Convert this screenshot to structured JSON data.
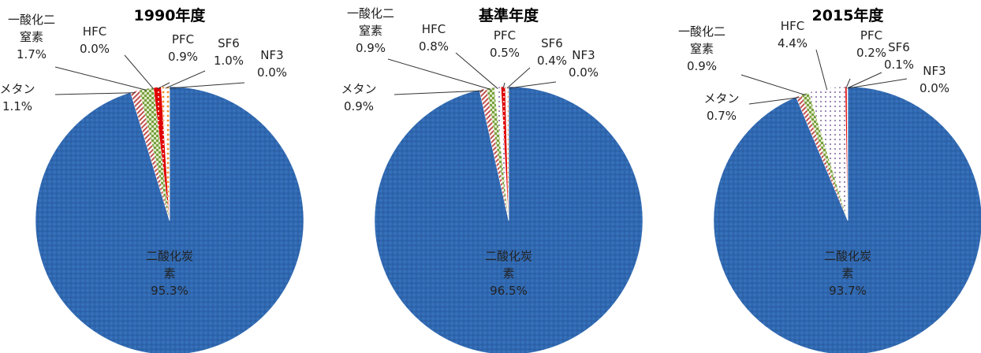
{
  "chart_data": [
    {
      "type": "pie",
      "title": "1990年度",
      "categories": [
        "二酸化炭素",
        "メタン",
        "一酸化二窒素",
        "HFC",
        "PFC",
        "SF6",
        "NF3"
      ],
      "values": [
        95.3,
        1.1,
        1.7,
        0.0,
        0.9,
        1.0,
        0.0
      ],
      "value_labels": [
        "95.3%",
        "1.1%",
        "1.7%",
        "0.0%",
        "0.9%",
        "1.0%",
        "0.0%"
      ],
      "colors": [
        "#2f67b0",
        "#c0504d",
        "#77a03c",
        "#8064a2",
        "#e00000",
        "#f08a2a",
        "#4bacc6"
      ]
    },
    {
      "type": "pie",
      "title": "基準年度",
      "categories": [
        "二酸化炭素",
        "メタン",
        "一酸化二窒素",
        "HFC",
        "PFC",
        "SF6",
        "NF3"
      ],
      "values": [
        96.5,
        0.9,
        0.9,
        0.8,
        0.5,
        0.4,
        0.0
      ],
      "value_labels": [
        "96.5%",
        "0.9%",
        "0.9%",
        "0.8%",
        "0.5%",
        "0.4%",
        "0.0%"
      ],
      "colors": [
        "#2f67b0",
        "#c0504d",
        "#77a03c",
        "#8064a2",
        "#e00000",
        "#f08a2a",
        "#4bacc6"
      ]
    },
    {
      "type": "pie",
      "title": "2015年度",
      "categories": [
        "二酸化炭素",
        "メタン",
        "一酸化二窒素",
        "HFC",
        "PFC",
        "SF6",
        "NF3"
      ],
      "values": [
        93.7,
        0.7,
        0.9,
        4.4,
        0.2,
        0.1,
        0.0
      ],
      "value_labels": [
        "93.7%",
        "0.7%",
        "0.9%",
        "4.4%",
        "0.2%",
        "0.1%",
        "0.0%"
      ],
      "colors": [
        "#2f67b0",
        "#c0504d",
        "#77a03c",
        "#8064a2",
        "#e00000",
        "#f08a2a",
        "#4bacc6"
      ]
    }
  ]
}
